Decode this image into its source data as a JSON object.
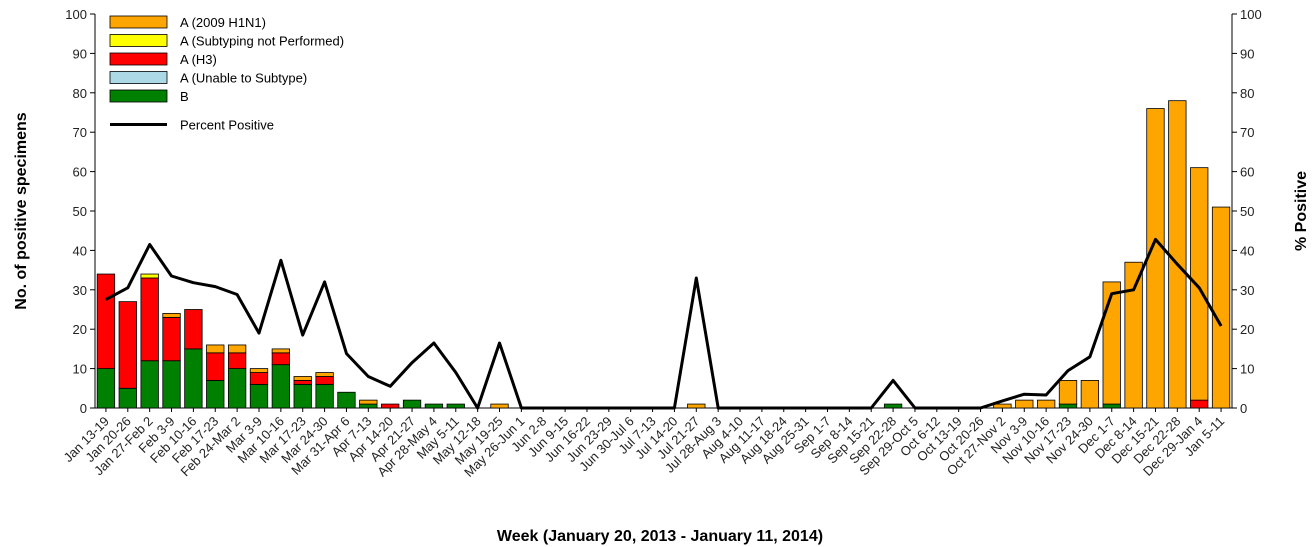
{
  "chart_data": {
    "type": "bar",
    "stacked": true,
    "title": "",
    "xlabel": "Week (January 20, 2013 - January 11, 2014)",
    "ylabel": "No. of positive specimens",
    "y2label": "% Positive",
    "ylim": [
      0,
      100
    ],
    "y2lim": [
      0,
      100
    ],
    "yticks": [
      0,
      10,
      20,
      30,
      40,
      50,
      60,
      70,
      80,
      90,
      100
    ],
    "legend_position": "top-left",
    "grid": false,
    "categories": [
      "Jan 13-19",
      "Jan 20-26",
      "Jan 27-Feb 2",
      "Feb 3-9",
      "Feb 10-16",
      "Feb 17-23",
      "Feb 24-Mar 2",
      "Mar 3-9",
      "Mar 10-16",
      "Mar 17-23",
      "Mar 24-30",
      "Mar 31-Apr 6",
      "Apr 7-13",
      "Apr 14-20",
      "Apr 21-27",
      "Apr 28-May 4",
      "May 5-11",
      "May 12-18",
      "May 19-25",
      "May 26-Jun 1",
      "Jun 2-8",
      "Jun 9-15",
      "Jun 16-22",
      "Jun 23-29",
      "Jun 30-Jul 6",
      "Jul 7-13",
      "Jul 14-20",
      "Jul 21-27",
      "Jul 28-Aug 3",
      "Aug 4-10",
      "Aug 11-17",
      "Aug 18-24",
      "Aug 25-31",
      "Sep 1-7",
      "Sep 8-14",
      "Sep 15-21",
      "Sep 22-28",
      "Sep 29-Oct 5",
      "Oct 6-12",
      "Oct 13-19",
      "Oct 20-26",
      "Oct 27-Nov 2",
      "Nov 3-9",
      "Nov 10-16",
      "Nov 17-23",
      "Nov 24-30",
      "Dec 1-7",
      "Dec 8-14",
      "Dec 15-21",
      "Dec 22-28",
      "Dec 29-Jan 4",
      "Jan 5-11"
    ],
    "series": [
      {
        "name": "B",
        "color": "#008000",
        "values": [
          10,
          5,
          12,
          12,
          15,
          7,
          10,
          6,
          11,
          6,
          6,
          4,
          1,
          0,
          2,
          1,
          1,
          0,
          0,
          0,
          0,
          0,
          0,
          0,
          0,
          0,
          0,
          0,
          0,
          0,
          0,
          0,
          0,
          0,
          0,
          0,
          1,
          0,
          0,
          0,
          0,
          0,
          0,
          0,
          1,
          0,
          1,
          0,
          0,
          0,
          0,
          0
        ]
      },
      {
        "name": "A (Unable to Subtype)",
        "color": "#add8e6",
        "values": [
          0,
          0,
          0,
          0,
          0,
          0,
          0,
          0,
          0,
          0,
          0,
          0,
          0,
          0,
          0,
          0,
          0,
          0,
          0,
          0,
          0,
          0,
          0,
          0,
          0,
          0,
          0,
          0,
          0,
          0,
          0,
          0,
          0,
          0,
          0,
          0,
          0,
          0,
          0,
          0,
          0,
          0,
          0,
          0,
          0,
          0,
          0,
          0,
          0,
          0,
          0,
          0
        ]
      },
      {
        "name": "A (H3)",
        "color": "#ff0000",
        "values": [
          24,
          22,
          21,
          11,
          10,
          7,
          4,
          3,
          3,
          1,
          2,
          0,
          0,
          1,
          0,
          0,
          0,
          0,
          0,
          0,
          0,
          0,
          0,
          0,
          0,
          0,
          0,
          0,
          0,
          0,
          0,
          0,
          0,
          0,
          0,
          0,
          0,
          0,
          0,
          0,
          0,
          0,
          0,
          0,
          0,
          0,
          0,
          0,
          0,
          0,
          2,
          0
        ]
      },
      {
        "name": "A (Subtyping not Performed)",
        "color": "#ffff00",
        "values": [
          0,
          0,
          1,
          0,
          0,
          0,
          0,
          0,
          0,
          0,
          0,
          0,
          0,
          0,
          0,
          0,
          0,
          0,
          0,
          0,
          0,
          0,
          0,
          0,
          0,
          0,
          0,
          0,
          0,
          0,
          0,
          0,
          0,
          0,
          0,
          0,
          0,
          0,
          0,
          0,
          0,
          0,
          0,
          0,
          0,
          0,
          0,
          0,
          0,
          0,
          0,
          0
        ]
      },
      {
        "name": "A (2009 H1N1)",
        "color": "#ffa500",
        "values": [
          0,
          0,
          0,
          1,
          0,
          2,
          2,
          1,
          1,
          1,
          1,
          0,
          1,
          0,
          0,
          0,
          0,
          0,
          1,
          0,
          0,
          0,
          0,
          0,
          0,
          0,
          0,
          1,
          0,
          0,
          0,
          0,
          0,
          0,
          0,
          0,
          0,
          0,
          0,
          0,
          0,
          1,
          2,
          2,
          6,
          7,
          31,
          37,
          76,
          78,
          59,
          51
        ]
      }
    ],
    "line": {
      "name": "Percent Positive",
      "color": "#000000",
      "values": [
        27.5,
        30.5,
        41.5,
        33.5,
        31.8,
        30.8,
        28.8,
        19.0,
        37.5,
        18.5,
        32.0,
        13.8,
        8.0,
        5.5,
        11.5,
        16.5,
        9.0,
        0,
        16.5,
        0,
        0,
        0,
        0,
        0,
        0,
        0,
        0,
        33.0,
        0,
        0,
        0,
        0,
        0,
        0,
        0,
        0,
        7.0,
        0,
        0,
        0,
        0,
        1.8,
        3.5,
        3.3,
        9.5,
        13.0,
        29.0,
        30.0,
        42.8,
        36.5,
        30.5,
        20.8
      ]
    },
    "legend_order": [
      "A (2009 H1N1)",
      "A (Subtyping not Performed)",
      "A (H3)",
      "A (Unable to Subtype)",
      "B",
      "Percent Positive"
    ]
  }
}
